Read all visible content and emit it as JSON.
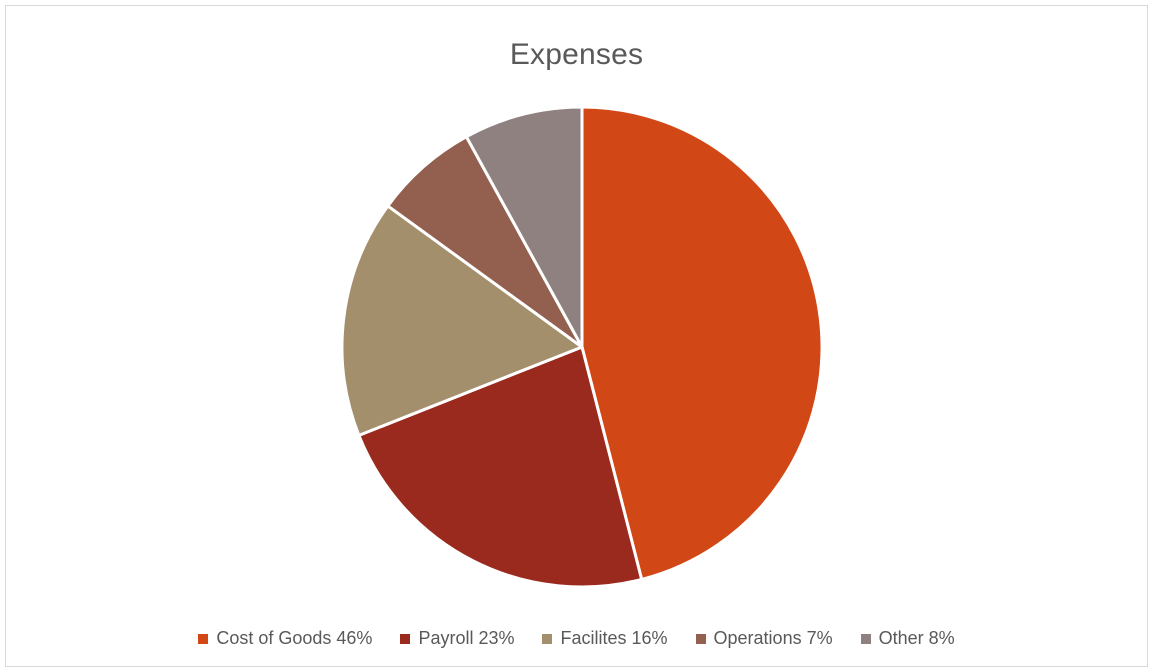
{
  "chart_data": {
    "type": "pie",
    "title": "Expenses",
    "legend_position": "bottom",
    "slices": [
      {
        "label": "Cost of Goods",
        "value": 46,
        "legend_text": "Cost of Goods 46%",
        "color": "#D24716"
      },
      {
        "label": "Payroll",
        "value": 23,
        "legend_text": "Payroll 23%",
        "color": "#9B2A1E"
      },
      {
        "label": "Facilites",
        "value": 16,
        "legend_text": "Facilites 16%",
        "color": "#A48F6C"
      },
      {
        "label": "Operations",
        "value": 7,
        "legend_text": "Operations 7%",
        "color": "#935F4F"
      },
      {
        "label": "Other",
        "value": 8,
        "legend_text": "Other 8%",
        "color": "#8E8180"
      }
    ]
  }
}
